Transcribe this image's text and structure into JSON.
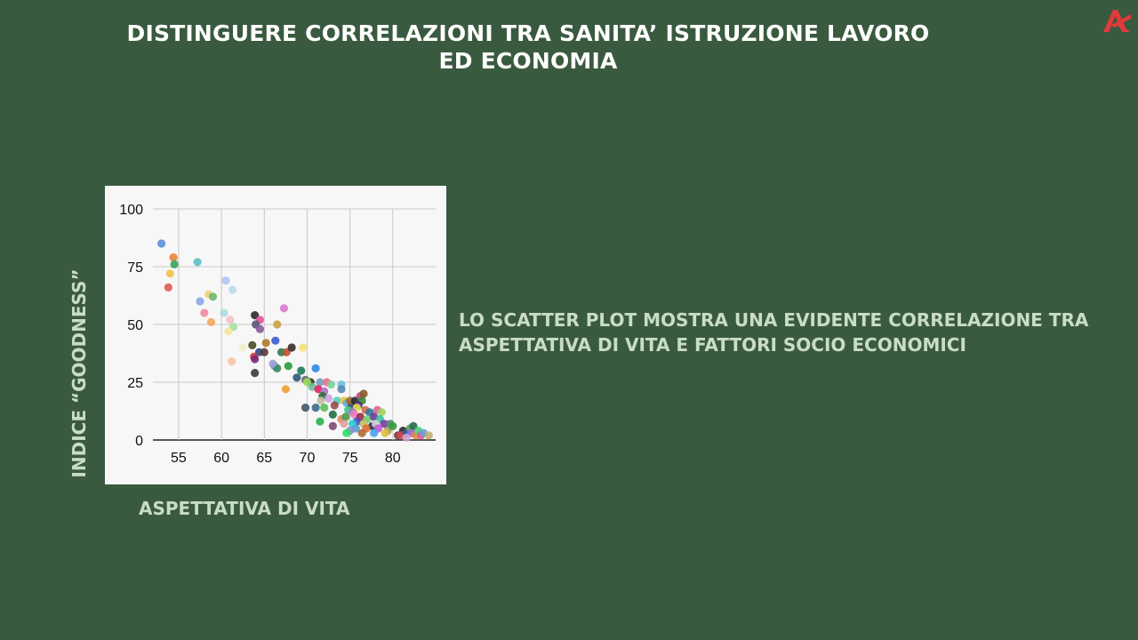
{
  "slide": {
    "title": "DISTINGUERE CORRELAZIONI TRA SANITA’ ISTRUZIONE LAVORO ED ECONOMIA",
    "caption": "LO SCATTER PLOT MOSTRA UNA EVIDENTE CORRELAZIONE TRA ASPETTATIVA DI VITA E FATTORI SOCIO ECONOMICI",
    "logo_icon": "ak-logo-icon",
    "accent_color": "#e23a3a",
    "background_color": "#3a5a3f",
    "label_color": "#c9dcc6"
  },
  "chart_data": {
    "type": "scatter",
    "title": "",
    "xlabel": "ASPETTATIVA DI VITA",
    "ylabel": "INDICE “GOODNESS”",
    "xlim": [
      52,
      85
    ],
    "ylim": [
      0,
      100
    ],
    "xticks": [
      55,
      60,
      65,
      70,
      75,
      80
    ],
    "yticks": [
      0,
      25,
      50,
      75,
      100
    ],
    "grid": true,
    "legend": "none",
    "points": [
      {
        "x": 53.0,
        "y": 85,
        "color": "#5b8fd9"
      },
      {
        "x": 54.4,
        "y": 79,
        "color": "#e8843a"
      },
      {
        "x": 54.5,
        "y": 76,
        "color": "#3aa35a"
      },
      {
        "x": 54.0,
        "y": 72,
        "color": "#f2c14e"
      },
      {
        "x": 53.8,
        "y": 66,
        "color": "#e05a4e"
      },
      {
        "x": 57.2,
        "y": 77,
        "color": "#5fbcc4"
      },
      {
        "x": 60.5,
        "y": 69,
        "color": "#a9c8f0"
      },
      {
        "x": 61.3,
        "y": 65,
        "color": "#b8dce8"
      },
      {
        "x": 58.5,
        "y": 63,
        "color": "#f0d27a"
      },
      {
        "x": 59.0,
        "y": 62,
        "color": "#6ab86a"
      },
      {
        "x": 57.5,
        "y": 60,
        "color": "#8aa6e8"
      },
      {
        "x": 58.0,
        "y": 55,
        "color": "#f08aa0"
      },
      {
        "x": 60.3,
        "y": 55,
        "color": "#b0d8e0"
      },
      {
        "x": 61.0,
        "y": 52,
        "color": "#f2c1c9"
      },
      {
        "x": 58.8,
        "y": 51,
        "color": "#f2a65a"
      },
      {
        "x": 61.4,
        "y": 49,
        "color": "#a8e0a0"
      },
      {
        "x": 60.8,
        "y": 47,
        "color": "#f0e6a0"
      },
      {
        "x": 61.2,
        "y": 34,
        "color": "#f7c4a0"
      },
      {
        "x": 62.5,
        "y": 40,
        "color": "#f0f0c8"
      },
      {
        "x": 63.9,
        "y": 54,
        "color": "#2a2a2a"
      },
      {
        "x": 64.5,
        "y": 52,
        "color": "#e0559a"
      },
      {
        "x": 64.0,
        "y": 50,
        "color": "#555577"
      },
      {
        "x": 64.5,
        "y": 48,
        "color": "#8a5a9a"
      },
      {
        "x": 66.3,
        "y": 43,
        "color": "#3a5ad0"
      },
      {
        "x": 67.3,
        "y": 57,
        "color": "#d97ad0"
      },
      {
        "x": 66.5,
        "y": 50,
        "color": "#c9a040"
      },
      {
        "x": 65.2,
        "y": 42,
        "color": "#b07a2a"
      },
      {
        "x": 63.6,
        "y": 41,
        "color": "#4a4a2a"
      },
      {
        "x": 64.4,
        "y": 38,
        "color": "#2a4a8a"
      },
      {
        "x": 65.0,
        "y": 38,
        "color": "#5a3a3a"
      },
      {
        "x": 63.8,
        "y": 36,
        "color": "#e03030"
      },
      {
        "x": 63.9,
        "y": 35,
        "color": "#7a2a7a"
      },
      {
        "x": 66.2,
        "y": 32,
        "color": "#5a8ad0"
      },
      {
        "x": 66.5,
        "y": 31,
        "color": "#3a8a5a"
      },
      {
        "x": 66.0,
        "y": 33,
        "color": "#a0a0d0"
      },
      {
        "x": 67.0,
        "y": 38,
        "color": "#2a7a4a"
      },
      {
        "x": 67.6,
        "y": 38,
        "color": "#c05030"
      },
      {
        "x": 68.2,
        "y": 40,
        "color": "#3a2a2a"
      },
      {
        "x": 67.8,
        "y": 32,
        "color": "#2a9a3a"
      },
      {
        "x": 63.9,
        "y": 29,
        "color": "#3a3a3a"
      },
      {
        "x": 67.5,
        "y": 22,
        "color": "#f0a030"
      },
      {
        "x": 69.5,
        "y": 40,
        "color": "#f5e070"
      },
      {
        "x": 69.3,
        "y": 30,
        "color": "#1a7a5a"
      },
      {
        "x": 71.0,
        "y": 31,
        "color": "#2a8ae0"
      },
      {
        "x": 68.8,
        "y": 27,
        "color": "#2a5a7a"
      },
      {
        "x": 69.8,
        "y": 26,
        "color": "#6a6a6a"
      },
      {
        "x": 70.4,
        "y": 25,
        "color": "#2a3a2a"
      },
      {
        "x": 70.0,
        "y": 25,
        "color": "#a0e060"
      },
      {
        "x": 70.6,
        "y": 23,
        "color": "#6ac0a0"
      },
      {
        "x": 71.5,
        "y": 25,
        "color": "#70a0c0"
      },
      {
        "x": 72.3,
        "y": 25,
        "color": "#f06a8a"
      },
      {
        "x": 71.3,
        "y": 22,
        "color": "#e02060"
      },
      {
        "x": 72.0,
        "y": 21,
        "color": "#b070c0"
      },
      {
        "x": 72.8,
        "y": 24,
        "color": "#80d0a0"
      },
      {
        "x": 74.0,
        "y": 24,
        "color": "#70c0e0"
      },
      {
        "x": 74.0,
        "y": 22,
        "color": "#5a8ab0"
      },
      {
        "x": 71.8,
        "y": 19,
        "color": "#2a6a3a"
      },
      {
        "x": 72.5,
        "y": 18,
        "color": "#d0a0e0"
      },
      {
        "x": 71.6,
        "y": 17,
        "color": "#c0c0a0"
      },
      {
        "x": 73.5,
        "y": 17,
        "color": "#4ad0c0"
      },
      {
        "x": 73.2,
        "y": 15,
        "color": "#9a4a4a"
      },
      {
        "x": 72.0,
        "y": 14,
        "color": "#5ac05a"
      },
      {
        "x": 71.0,
        "y": 14,
        "color": "#3a6a8a"
      },
      {
        "x": 69.8,
        "y": 14,
        "color": "#3a5a6a"
      },
      {
        "x": 73.0,
        "y": 11,
        "color": "#207040"
      },
      {
        "x": 74.0,
        "y": 9,
        "color": "#e08a5a"
      },
      {
        "x": 71.5,
        "y": 8,
        "color": "#2ab04a"
      },
      {
        "x": 73.0,
        "y": 6,
        "color": "#7a4a7a"
      },
      {
        "x": 74.3,
        "y": 17,
        "color": "#f0c040"
      },
      {
        "x": 74.6,
        "y": 16,
        "color": "#60b0e0"
      },
      {
        "x": 75.2,
        "y": 15,
        "color": "#3a3a6a"
      },
      {
        "x": 75.0,
        "y": 17,
        "color": "#9a6a2a"
      },
      {
        "x": 75.6,
        "y": 17,
        "color": "#2a2a2a"
      },
      {
        "x": 76.2,
        "y": 19,
        "color": "#c04a8a"
      },
      {
        "x": 76.6,
        "y": 20,
        "color": "#8a5a2a"
      },
      {
        "x": 76.4,
        "y": 17,
        "color": "#3a8a3a"
      },
      {
        "x": 76.0,
        "y": 15,
        "color": "#5a2a8a"
      },
      {
        "x": 75.8,
        "y": 14,
        "color": "#e0e050"
      },
      {
        "x": 74.8,
        "y": 13,
        "color": "#40c080"
      },
      {
        "x": 75.3,
        "y": 12,
        "color": "#a07ad0"
      },
      {
        "x": 76.8,
        "y": 13,
        "color": "#d06a4a"
      },
      {
        "x": 77.3,
        "y": 12,
        "color": "#2a7a9a"
      },
      {
        "x": 75.5,
        "y": 11,
        "color": "#f080c0"
      },
      {
        "x": 74.5,
        "y": 10,
        "color": "#4a9a4a"
      },
      {
        "x": 76.2,
        "y": 10,
        "color": "#9a2a4a"
      },
      {
        "x": 77.0,
        "y": 9,
        "color": "#6ad06a"
      },
      {
        "x": 75.8,
        "y": 8,
        "color": "#4a4ac0"
      },
      {
        "x": 74.3,
        "y": 7,
        "color": "#e0a0a0"
      },
      {
        "x": 75.3,
        "y": 7,
        "color": "#2ad0d0"
      },
      {
        "x": 76.6,
        "y": 7,
        "color": "#c0c060"
      },
      {
        "x": 77.6,
        "y": 6,
        "color": "#2a2a4a"
      },
      {
        "x": 75.7,
        "y": 5,
        "color": "#5a9ad0"
      },
      {
        "x": 76.9,
        "y": 5,
        "color": "#e06a2a"
      },
      {
        "x": 75.0,
        "y": 4,
        "color": "#8a8ad0"
      },
      {
        "x": 74.6,
        "y": 3,
        "color": "#30e060"
      },
      {
        "x": 76.4,
        "y": 3,
        "color": "#b06a3a"
      },
      {
        "x": 78.2,
        "y": 13,
        "color": "#e060a0"
      },
      {
        "x": 78.7,
        "y": 12,
        "color": "#a0d060"
      },
      {
        "x": 77.8,
        "y": 10,
        "color": "#6a3a9a"
      },
      {
        "x": 78.5,
        "y": 9,
        "color": "#3ac0a0"
      },
      {
        "x": 79.0,
        "y": 7,
        "color": "#7a3aa0"
      },
      {
        "x": 78.0,
        "y": 7,
        "color": "#d0d0d0"
      },
      {
        "x": 79.7,
        "y": 7,
        "color": "#4a8a7a"
      },
      {
        "x": 78.3,
        "y": 5,
        "color": "#c05ad0"
      },
      {
        "x": 79.4,
        "y": 4,
        "color": "#a0a060"
      },
      {
        "x": 77.8,
        "y": 3,
        "color": "#4aa0f0"
      },
      {
        "x": 79.1,
        "y": 3,
        "color": "#e0c040"
      },
      {
        "x": 80.0,
        "y": 6,
        "color": "#3a9a3a"
      },
      {
        "x": 80.6,
        "y": 2,
        "color": "#7a3a3a"
      },
      {
        "x": 81.2,
        "y": 4,
        "color": "#2a2a2a"
      },
      {
        "x": 81.0,
        "y": 2,
        "color": "#d04a4a"
      },
      {
        "x": 81.6,
        "y": 3,
        "color": "#3a5a9a"
      },
      {
        "x": 82.0,
        "y": 5,
        "color": "#5a9a6a"
      },
      {
        "x": 82.4,
        "y": 6,
        "color": "#2a6a4a"
      },
      {
        "x": 82.2,
        "y": 3,
        "color": "#a06ad0"
      },
      {
        "x": 82.7,
        "y": 2,
        "color": "#e08a3a"
      },
      {
        "x": 83.0,
        "y": 4,
        "color": "#4ad080"
      },
      {
        "x": 83.3,
        "y": 2,
        "color": "#e05a8a"
      },
      {
        "x": 83.6,
        "y": 3,
        "color": "#6aa0d0"
      },
      {
        "x": 84.2,
        "y": 2,
        "color": "#c0b070"
      },
      {
        "x": 81.6,
        "y": 1,
        "color": "#d0a0d0"
      }
    ]
  }
}
